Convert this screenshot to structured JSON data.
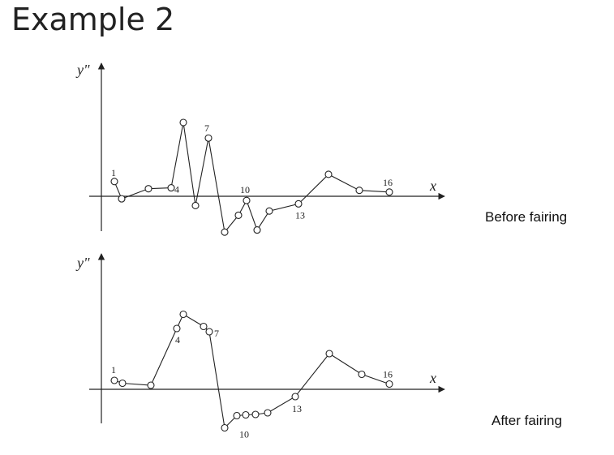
{
  "slide": {
    "title": "Example 2"
  },
  "chart_data": [
    {
      "type": "line",
      "title": "",
      "caption": "Before fairing",
      "xlabel": "x",
      "ylabel": "y\"",
      "grid": false,
      "series": [
        {
          "x": [
            1,
            2,
            3,
            4,
            5,
            6,
            7,
            8,
            9,
            10,
            11,
            12,
            13,
            14,
            15,
            16
          ],
          "y": [
            0.35,
            -0.06,
            0.18,
            0.2,
            1.75,
            -0.22,
            1.38,
            -0.85,
            -0.45,
            -0.1,
            -0.8,
            -0.35,
            -0.18,
            0.52,
            0.14,
            0.1
          ]
        }
      ],
      "point_labels": [
        {
          "index": 1,
          "text": "1"
        },
        {
          "index": 4,
          "text": "4"
        },
        {
          "index": 7,
          "text": "7"
        },
        {
          "index": 10,
          "text": "10"
        },
        {
          "index": 13,
          "text": "13"
        },
        {
          "index": 16,
          "text": "16"
        }
      ]
    },
    {
      "type": "line",
      "title": "",
      "caption": "After fairing",
      "xlabel": "x",
      "ylabel": "y\"",
      "grid": false,
      "series": [
        {
          "x": [
            1,
            2,
            3,
            4,
            5,
            6,
            7,
            8,
            9,
            10,
            11,
            12,
            13,
            14,
            15,
            16
          ],
          "y": [
            0.22,
            0.15,
            0.1,
            1.5,
            1.85,
            1.55,
            1.42,
            -0.95,
            -0.65,
            -0.63,
            -0.62,
            -0.58,
            -0.18,
            0.88,
            0.37,
            0.13
          ]
        }
      ],
      "point_labels": [
        {
          "index": 1,
          "text": "1"
        },
        {
          "index": 4,
          "text": "4"
        },
        {
          "index": 7,
          "text": "7"
        },
        {
          "index": 10,
          "text": "10"
        },
        {
          "index": 13,
          "text": "13"
        },
        {
          "index": 16,
          "text": "16"
        }
      ]
    }
  ]
}
